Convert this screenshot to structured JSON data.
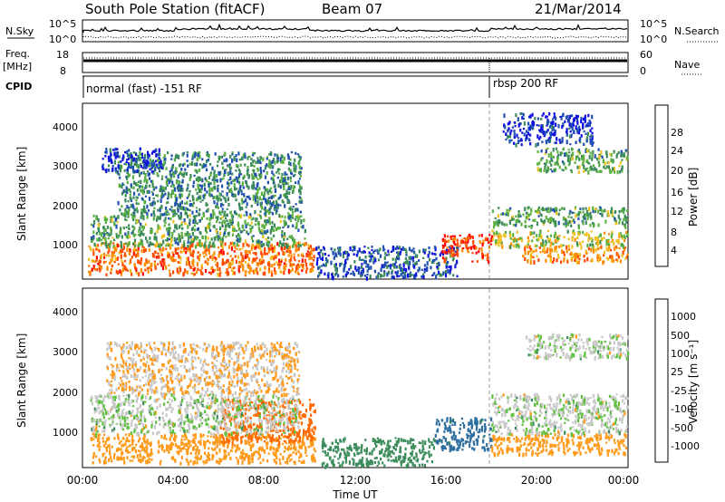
{
  "header": {
    "title": "South Pole Station (fitACF)",
    "beam": "Beam 07",
    "date": "21/Mar/2014"
  },
  "noise_panel": {
    "left_label": "N.Sky",
    "right_label": "N.Search",
    "left_ticks": [
      "10^5",
      "10^0"
    ],
    "right_ticks": [
      "10^5",
      "10^0"
    ]
  },
  "freq_panel": {
    "left_label_line1": "Freq.",
    "left_label_line2": "[MHz]",
    "right_label": "Nave",
    "left_ticks": [
      "18",
      "8"
    ],
    "right_ticks": [
      "60",
      "0"
    ]
  },
  "cpid_panel": {
    "label": "CPID",
    "modes": [
      {
        "name": "normal (fast) -151 RF",
        "start_hour": 0,
        "end_hour": 18
      },
      {
        "name": "rbsp 200 RF",
        "start_hour": 18,
        "end_hour": 24
      }
    ]
  },
  "colors": {
    "power_scale": [
      "#1010e0",
      "#2050b0",
      "#3a8a5a",
      "#5ab040",
      "#f0c020",
      "#ff8c00",
      "#ff4a00",
      "#ff0000"
    ],
    "velocity_scale": [
      "#1f4fc0",
      "#2f6fa0",
      "#3c8c5c",
      "#60c040",
      "#c8c8c8",
      "#c8c8c8",
      "#ff9a1a",
      "#ff6a00",
      "#ff1a00"
    ]
  },
  "chart_data": [
    {
      "type": "heatmap",
      "title": "",
      "xlabel": "Time UT",
      "ylabel": "Slant Range [km]",
      "x_ticks": [
        "00:00",
        "04:00",
        "08:00",
        "12:00",
        "16:00",
        "20:00",
        "00:00"
      ],
      "xlim_hours": [
        0,
        24
      ],
      "ylim": [
        180,
        4600
      ],
      "y_ticks": [
        1000,
        2000,
        3000,
        4000
      ],
      "colorbar": {
        "label": "Power [dB]",
        "ticks": [
          "4",
          "8",
          "12",
          "16",
          "20",
          "24",
          "28"
        ],
        "range": [
          0,
          30
        ]
      },
      "scatter_regions": [
        {
          "t0": 0.2,
          "t1": 10.2,
          "r0": 280,
          "r1": 1100,
          "value": 24
        },
        {
          "t0": 0.3,
          "t1": 9.8,
          "r0": 1000,
          "r1": 1800,
          "value": 12
        },
        {
          "t0": 1.5,
          "t1": 9.6,
          "r0": 1800,
          "r1": 3400,
          "value": 10
        },
        {
          "t0": 0.8,
          "t1": 3.5,
          "r0": 2900,
          "r1": 3500,
          "value": 4
        },
        {
          "t0": 10.2,
          "t1": 16.5,
          "r0": 200,
          "r1": 1000,
          "value": 6
        },
        {
          "t0": 15.8,
          "t1": 18.0,
          "r0": 600,
          "r1": 1300,
          "value": 27
        },
        {
          "t0": 18.0,
          "t1": 24.0,
          "r0": 1000,
          "r1": 1400,
          "value": 16
        },
        {
          "t0": 18.0,
          "t1": 24.0,
          "r0": 1500,
          "r1": 2000,
          "value": 12
        },
        {
          "t0": 19.3,
          "t1": 24.0,
          "r0": 600,
          "r1": 1000,
          "value": 22
        },
        {
          "t0": 20.0,
          "t1": 24.0,
          "r0": 2900,
          "r1": 3500,
          "value": 12
        },
        {
          "t0": 18.5,
          "t1": 22.5,
          "r0": 3600,
          "r1": 4400,
          "value": 4
        }
      ]
    },
    {
      "type": "heatmap",
      "title": "",
      "xlabel": "Time UT",
      "ylabel": "Slant Range [km]",
      "x_ticks": [
        "00:00",
        "04:00",
        "08:00",
        "12:00",
        "16:00",
        "20:00",
        "00:00"
      ],
      "xlim_hours": [
        0,
        24
      ],
      "ylim": [
        180,
        4600
      ],
      "y_ticks": [
        1000,
        2000,
        3000,
        4000
      ],
      "colorbar": {
        "label": "Velocity [m s⁻¹]",
        "ticks": [
          "1000",
          "500",
          "100",
          "25",
          "-25",
          "-100",
          "-500",
          "-1000"
        ]
      },
      "scatter_regions": [
        {
          "t0": 0.3,
          "t1": 10.2,
          "r0": 280,
          "r1": 1000,
          "value": -300
        },
        {
          "t0": 6.0,
          "t1": 10.2,
          "r0": 800,
          "r1": 1900,
          "value": -700
        },
        {
          "t0": 0.3,
          "t1": 9.5,
          "r0": 1000,
          "r1": 2000,
          "value": 0
        },
        {
          "t0": 1.0,
          "t1": 9.5,
          "r0": 2000,
          "r1": 3300,
          "value": -100
        },
        {
          "t0": 10.5,
          "t1": 15.5,
          "r0": 200,
          "r1": 900,
          "value": 300
        },
        {
          "t0": 15.5,
          "t1": 18.0,
          "r0": 600,
          "r1": 1400,
          "value": 600
        },
        {
          "t0": 18.0,
          "t1": 24.0,
          "r0": 500,
          "r1": 1000,
          "value": -300
        },
        {
          "t0": 18.0,
          "t1": 24.0,
          "r0": 1000,
          "r1": 2000,
          "value": 0
        },
        {
          "t0": 19.5,
          "t1": 24.0,
          "r0": 2900,
          "r1": 3500,
          "value": 0
        }
      ]
    }
  ]
}
